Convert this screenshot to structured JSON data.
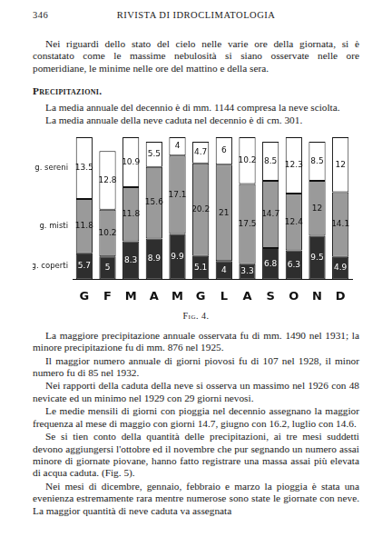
{
  "header": {
    "page": "346",
    "title": "RIVISTA DI IDROCLIMATOLOGIA"
  },
  "before_figure": [
    {
      "kind": "p",
      "text": "Nei riguardi dello stato del cielo nelle varie ore della giornata, si è constatato come le massime nebulosità si siano osservate nelle ore pomeridiane, le minime nelle ore del mattino e della sera."
    },
    {
      "kind": "h",
      "text": "Precipitazioni."
    },
    {
      "kind": "p",
      "text": "La media annuale del decennio è di mm. 1144 compresa la neve sciolta."
    },
    {
      "kind": "p",
      "text": "La media annuale della neve caduta nel decennio è di cm. 301."
    }
  ],
  "chart_data": {
    "type": "bar",
    "stacked": true,
    "data_labels": true,
    "tick_labels": "x",
    "grid": false,
    "categories": [
      "G",
      "F",
      "M",
      "A",
      "M",
      "G",
      "L",
      "A",
      "S",
      "O",
      "N",
      "D"
    ],
    "series": [
      {
        "name": "g. coperti",
        "color": "#2e2e2e",
        "values": [
          5.7,
          5,
          8.3,
          8.9,
          9.9,
          5.1,
          4,
          3.3,
          6.8,
          6.3,
          9.5,
          4.9
        ]
      },
      {
        "name": "g. misti",
        "color": "#9a9a9a",
        "values": [
          11.8,
          10.2,
          11.8,
          15.6,
          17.1,
          20.2,
          21,
          17.5,
          14.7,
          12.4,
          12,
          14.1
        ]
      },
      {
        "name": "g. sereni",
        "color": "#ffffff",
        "values": [
          13.5,
          12.8,
          10.9,
          5.5,
          4,
          4.7,
          6,
          10.2,
          8.5,
          12.3,
          8.5,
          12
        ]
      }
    ],
    "ylim": [
      0,
      31
    ]
  },
  "caption": "Fig. 4.",
  "after_figure": [
    {
      "kind": "p",
      "text": "La maggiore precipitazione annuale osservata fu di mm. 1490 nel 1931; la minore precipitazione fu di mm. 876 nel 1925."
    },
    {
      "kind": "p",
      "text": "Il maggior numero annuale di giorni piovosi fu di 107 nel 1928, il minor numero fu di 85 nel 1932."
    },
    {
      "kind": "p",
      "text": "Nei rapporti della caduta della neve si osserva un massimo nel 1926 con 48 nevicate ed un minimo nel 1929 con 29 giorni nevosi."
    },
    {
      "kind": "p",
      "text": "Le medie mensili di giorni con pioggia nel decennio assegnano la maggior frequenza al mese di maggio con giorni 14.7, giugno con 16.2, luglio con 14.6."
    },
    {
      "kind": "p",
      "text": "Se si tien conto della quantità delle precipitazioni, ai tre mesi suddetti devono aggiungersi l'ottobre ed il novembre che pur segnando un numero assai minore di giornate piovane, hanno fatto registrare una massa assai più elevata di acqua caduta. (Fig. 5)."
    },
    {
      "kind": "p",
      "text": "Nei mesi di dicembre, gennaio, febbraio e marzo la pioggia è stata una evenienza estremamente rara mentre numerose sono state le giornate con neve. La maggior quantità di neve caduta va assegnata"
    }
  ]
}
